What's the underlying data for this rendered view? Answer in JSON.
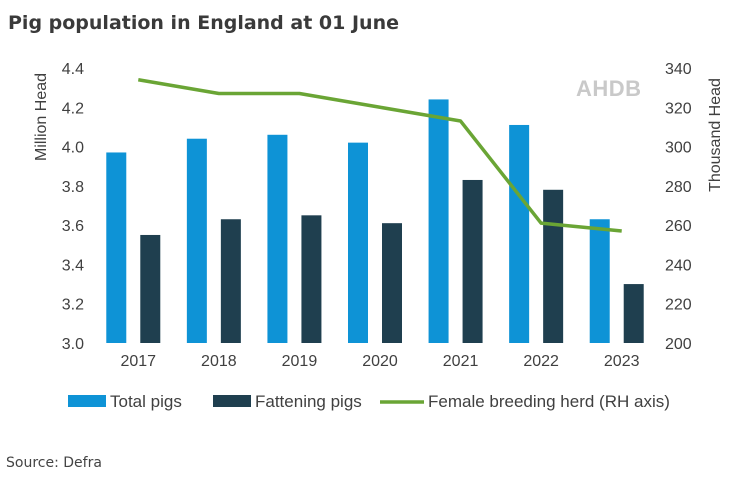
{
  "title": "Pig population in England at 01 June",
  "source": "Source: Defra",
  "watermark": "AHDB",
  "colors": {
    "total": "#0e93d6",
    "fattening": "#1f3f4f",
    "breeding": "#6aa535",
    "text": "#404040"
  },
  "chart_data": {
    "type": "bar",
    "categories": [
      "2017",
      "2018",
      "2019",
      "2020",
      "2021",
      "2022",
      "2023"
    ],
    "series": [
      {
        "name": "Total pigs",
        "type": "bar",
        "axis": "left",
        "values": [
          3.97,
          4.04,
          4.06,
          4.02,
          4.24,
          4.11,
          3.63
        ]
      },
      {
        "name": "Fattening pigs",
        "type": "bar",
        "axis": "left",
        "values": [
          3.55,
          3.63,
          3.65,
          3.61,
          3.83,
          3.78,
          3.3
        ]
      },
      {
        "name": "Female breeding herd (RH axis)",
        "type": "line",
        "axis": "right",
        "values": [
          334,
          327,
          327,
          320,
          313,
          261,
          257
        ]
      }
    ],
    "ylabel": "Million Head",
    "y2label": "Thousand Head",
    "ylim": [
      3.0,
      4.4
    ],
    "y2lim": [
      200,
      340
    ],
    "yticks": [
      "3.0",
      "3.2",
      "3.4",
      "3.6",
      "3.8",
      "4.0",
      "4.2",
      "4.4"
    ],
    "y2ticks": [
      "200",
      "220",
      "240",
      "260",
      "280",
      "300",
      "320",
      "340"
    ],
    "grid": false,
    "legend_position": "bottom"
  }
}
